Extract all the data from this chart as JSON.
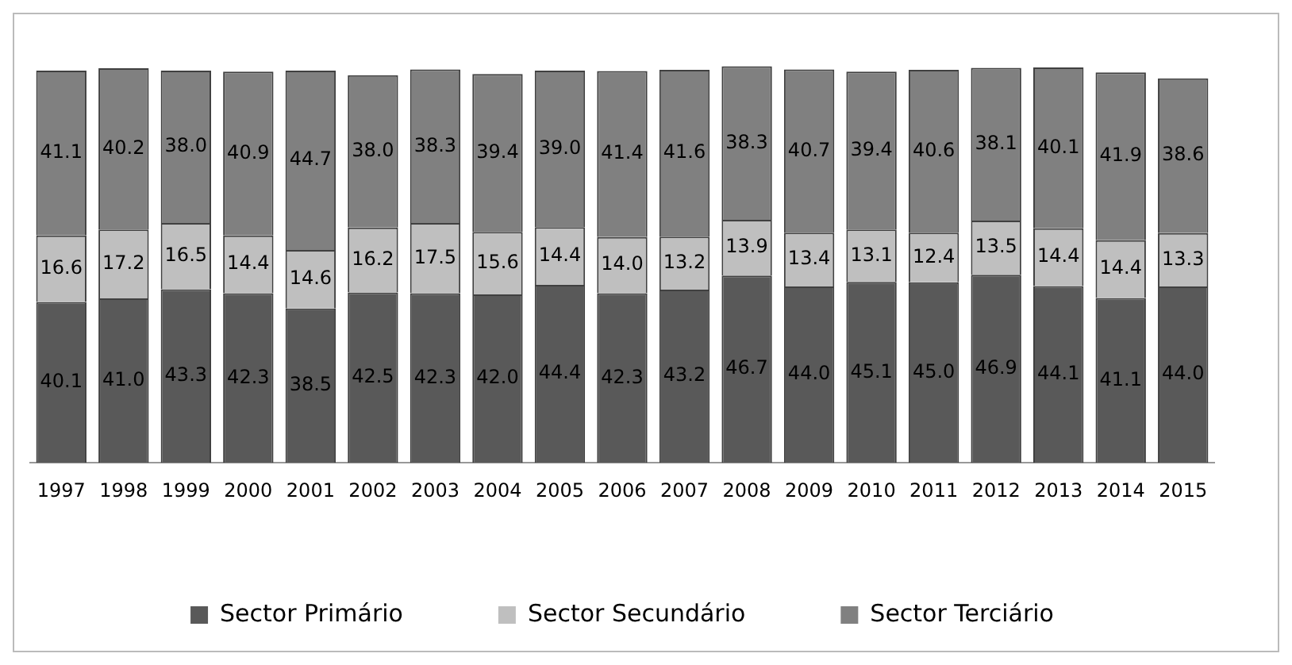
{
  "chart_data": {
    "type": "bar",
    "stacked": true,
    "legend": "bottom",
    "tick_labels": "x",
    "categories": [
      "1997",
      "1998",
      "1999",
      "2000",
      "2001",
      "2002",
      "2003",
      "2004",
      "2005",
      "2006",
      "2007",
      "2008",
      "2009",
      "2010",
      "2011",
      "2012",
      "2013",
      "2014",
      "2015"
    ],
    "series": [
      {
        "name": "Sector Primário",
        "color": "#595959",
        "values": [
          40.1,
          41.0,
          43.3,
          42.3,
          38.5,
          42.5,
          42.3,
          42.0,
          44.4,
          42.3,
          43.2,
          46.7,
          44.0,
          45.1,
          45.0,
          46.9,
          44.1,
          41.1,
          44.0
        ],
        "value_labels": [
          "40.1",
          "41.0",
          "43.3",
          "42.3",
          "38.5",
          "42.5",
          "42.3",
          "42.0",
          "44.4",
          "42.3",
          "43.2",
          "46.7",
          "44.0",
          "45.1",
          "45.0",
          "46.9",
          "44.1",
          "41.1",
          "44.0"
        ]
      },
      {
        "name": "Sector Secundário",
        "color": "#bfbfbf",
        "values": [
          16.6,
          17.2,
          16.5,
          14.4,
          14.6,
          16.2,
          17.5,
          15.6,
          14.4,
          14.0,
          13.2,
          13.9,
          13.4,
          13.1,
          12.4,
          13.5,
          14.4,
          14.4,
          13.3
        ],
        "value_labels": [
          "16.6",
          "17.2",
          "16.5",
          "14.4",
          "14.6",
          "16.2",
          "17.5",
          "15.6",
          "14.4",
          "14.0",
          "13.2",
          "13.9",
          "13.4",
          "13.1",
          "12.4",
          "13.5",
          "14.4",
          "14.4",
          "13.3"
        ]
      },
      {
        "name": "Sector Terciário",
        "color": "#808080",
        "values": [
          41.1,
          40.2,
          38.0,
          40.9,
          44.7,
          38.0,
          38.3,
          39.4,
          39.0,
          41.4,
          41.6,
          38.3,
          40.7,
          39.4,
          40.6,
          38.1,
          40.1,
          41.9,
          38.6
        ],
        "value_labels": [
          "41.1",
          "40.2",
          "38.0",
          "40.9",
          "44.7",
          "38.0",
          "38.3",
          "39.4",
          "39.0",
          "41.4",
          "41.6",
          "38.3",
          "40.7",
          "39.4",
          "40.6",
          "38.1",
          "40.1",
          "41.9",
          "38.6"
        ]
      }
    ]
  }
}
